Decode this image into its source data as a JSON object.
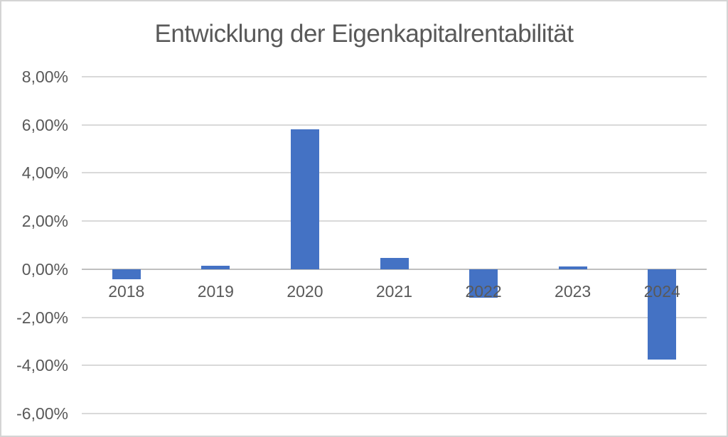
{
  "chart_data": {
    "type": "bar",
    "title": "Entwicklung der Eigenkapitalrentabilität",
    "categories": [
      "2018",
      "2019",
      "2020",
      "2021",
      "2022",
      "2023",
      "2024"
    ],
    "series": [
      {
        "name": "Eigenkapitalrentabilität",
        "values": [
          -0.43,
          0.14,
          5.82,
          0.47,
          -1.18,
          0.11,
          -3.74
        ]
      }
    ],
    "value_unit": "%",
    "xlabel": "",
    "ylabel": "",
    "y_ticks": [
      {
        "value": 8,
        "label": "8,00%"
      },
      {
        "value": 6,
        "label": "6,00%"
      },
      {
        "value": 4,
        "label": "4,00%"
      },
      {
        "value": 2,
        "label": "2,00%"
      },
      {
        "value": 0,
        "label": "0,00%"
      },
      {
        "value": -2,
        "label": "-2,00%"
      },
      {
        "value": -4,
        "label": "-4,00%"
      },
      {
        "value": -6,
        "label": "-6,00%"
      }
    ],
    "ylim": [
      -6,
      8
    ],
    "grid": true,
    "legend": false,
    "colors": {
      "bar": "#4472C4",
      "text": "#595959",
      "gridline": "#D9D9D9",
      "axis_line": "#BFBFBF",
      "chart_border": "#D4D4D4",
      "background": "#FFFFFF"
    }
  }
}
